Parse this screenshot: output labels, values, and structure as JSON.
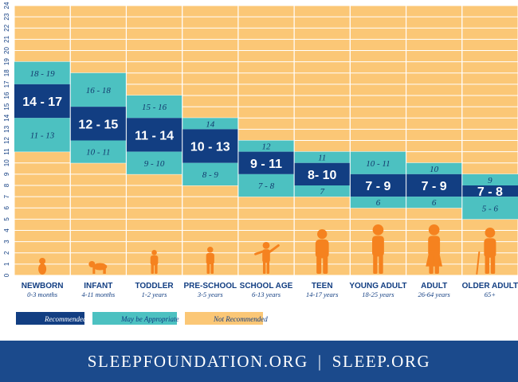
{
  "colors": {
    "recommended": "#123e82",
    "may_be_appropriate": "#4cc1c1",
    "not_recommended": "#fbc776",
    "silhouette": "#f5821f",
    "footer_bg": "#1b4a8c",
    "grid": "#ffffff"
  },
  "chart_data": {
    "type": "bar",
    "ylim": [
      0,
      24
    ],
    "ylabel": "",
    "yticks": [
      "0",
      "1",
      "2",
      "3",
      "4",
      "5",
      "6",
      "7",
      "8",
      "9",
      "10",
      "11",
      "12",
      "13",
      "14",
      "15",
      "16",
      "17",
      "18",
      "19",
      "20",
      "21",
      "22",
      "23",
      "24"
    ],
    "categories": [
      {
        "name": "NEWBORN",
        "age": "0-3 months",
        "silhouette": "baby-sitting"
      },
      {
        "name": "INFANT",
        "age": "4-11 months",
        "silhouette": "baby-crawling"
      },
      {
        "name": "TODDLER",
        "age": "1-2 years",
        "silhouette": "toddler"
      },
      {
        "name": "PRE-SCHOOL",
        "age": "3-5 years",
        "silhouette": "preschooler"
      },
      {
        "name": "SCHOOL AGE",
        "age": "6-13 years",
        "silhouette": "child-waving"
      },
      {
        "name": "TEEN",
        "age": "14-17 years",
        "silhouette": "teen"
      },
      {
        "name": "YOUNG ADULT",
        "age": "18-25 years",
        "silhouette": "young-adult"
      },
      {
        "name": "ADULT",
        "age": "26-64 years",
        "silhouette": "adult-woman"
      },
      {
        "name": "OLDER ADULT",
        "age": "65+",
        "silhouette": "older-adult-cane"
      }
    ],
    "series": [
      {
        "name": "May be Appropriate (upper)",
        "ranges": [
          [
            17,
            19
          ],
          [
            15,
            18
          ],
          [
            14,
            16
          ],
          [
            13,
            14
          ],
          [
            11,
            12
          ],
          [
            10,
            11
          ],
          [
            9,
            11
          ],
          [
            9,
            10
          ],
          [
            8,
            9
          ]
        ],
        "labels": [
          "18 - 19",
          "16 - 18",
          "15 - 16",
          "14",
          "12",
          "11",
          "10 - 11",
          "10",
          "9"
        ]
      },
      {
        "name": "Recommended",
        "ranges": [
          [
            14,
            17
          ],
          [
            12,
            15
          ],
          [
            11,
            14
          ],
          [
            10,
            13
          ],
          [
            9,
            11
          ],
          [
            8,
            10
          ],
          [
            7,
            9
          ],
          [
            7,
            9
          ],
          [
            7,
            8
          ]
        ],
        "labels": [
          "14 - 17",
          "12 - 15",
          "11 - 14",
          "10 - 13",
          "9 - 11",
          "8- 10",
          "7 - 9",
          "7 - 9",
          "7 - 8"
        ]
      },
      {
        "name": "May be Appropriate (lower)",
        "ranges": [
          [
            11,
            14
          ],
          [
            10,
            12
          ],
          [
            9,
            11
          ],
          [
            8,
            10
          ],
          [
            7,
            9
          ],
          [
            7,
            8
          ],
          [
            6,
            7
          ],
          [
            6,
            7
          ],
          [
            5,
            7
          ]
        ],
        "labels": [
          "11 - 13",
          "10 - 11",
          "9 - 10",
          "8 - 9",
          "7 - 8",
          "7",
          "6",
          "6",
          "5 - 6"
        ]
      }
    ],
    "legend": {
      "placement": "bottom-left",
      "items": [
        {
          "label": "Recommended",
          "color": "#123e82"
        },
        {
          "label": "May be Appropriate",
          "color": "#4cc1c1"
        },
        {
          "label": "Not Recommended",
          "color": "#fbc776"
        }
      ]
    },
    "grid": true
  },
  "footer": {
    "left": "SLEEPFOUNDATION.ORG",
    "separator": "|",
    "right": "SLEEP.ORG"
  }
}
